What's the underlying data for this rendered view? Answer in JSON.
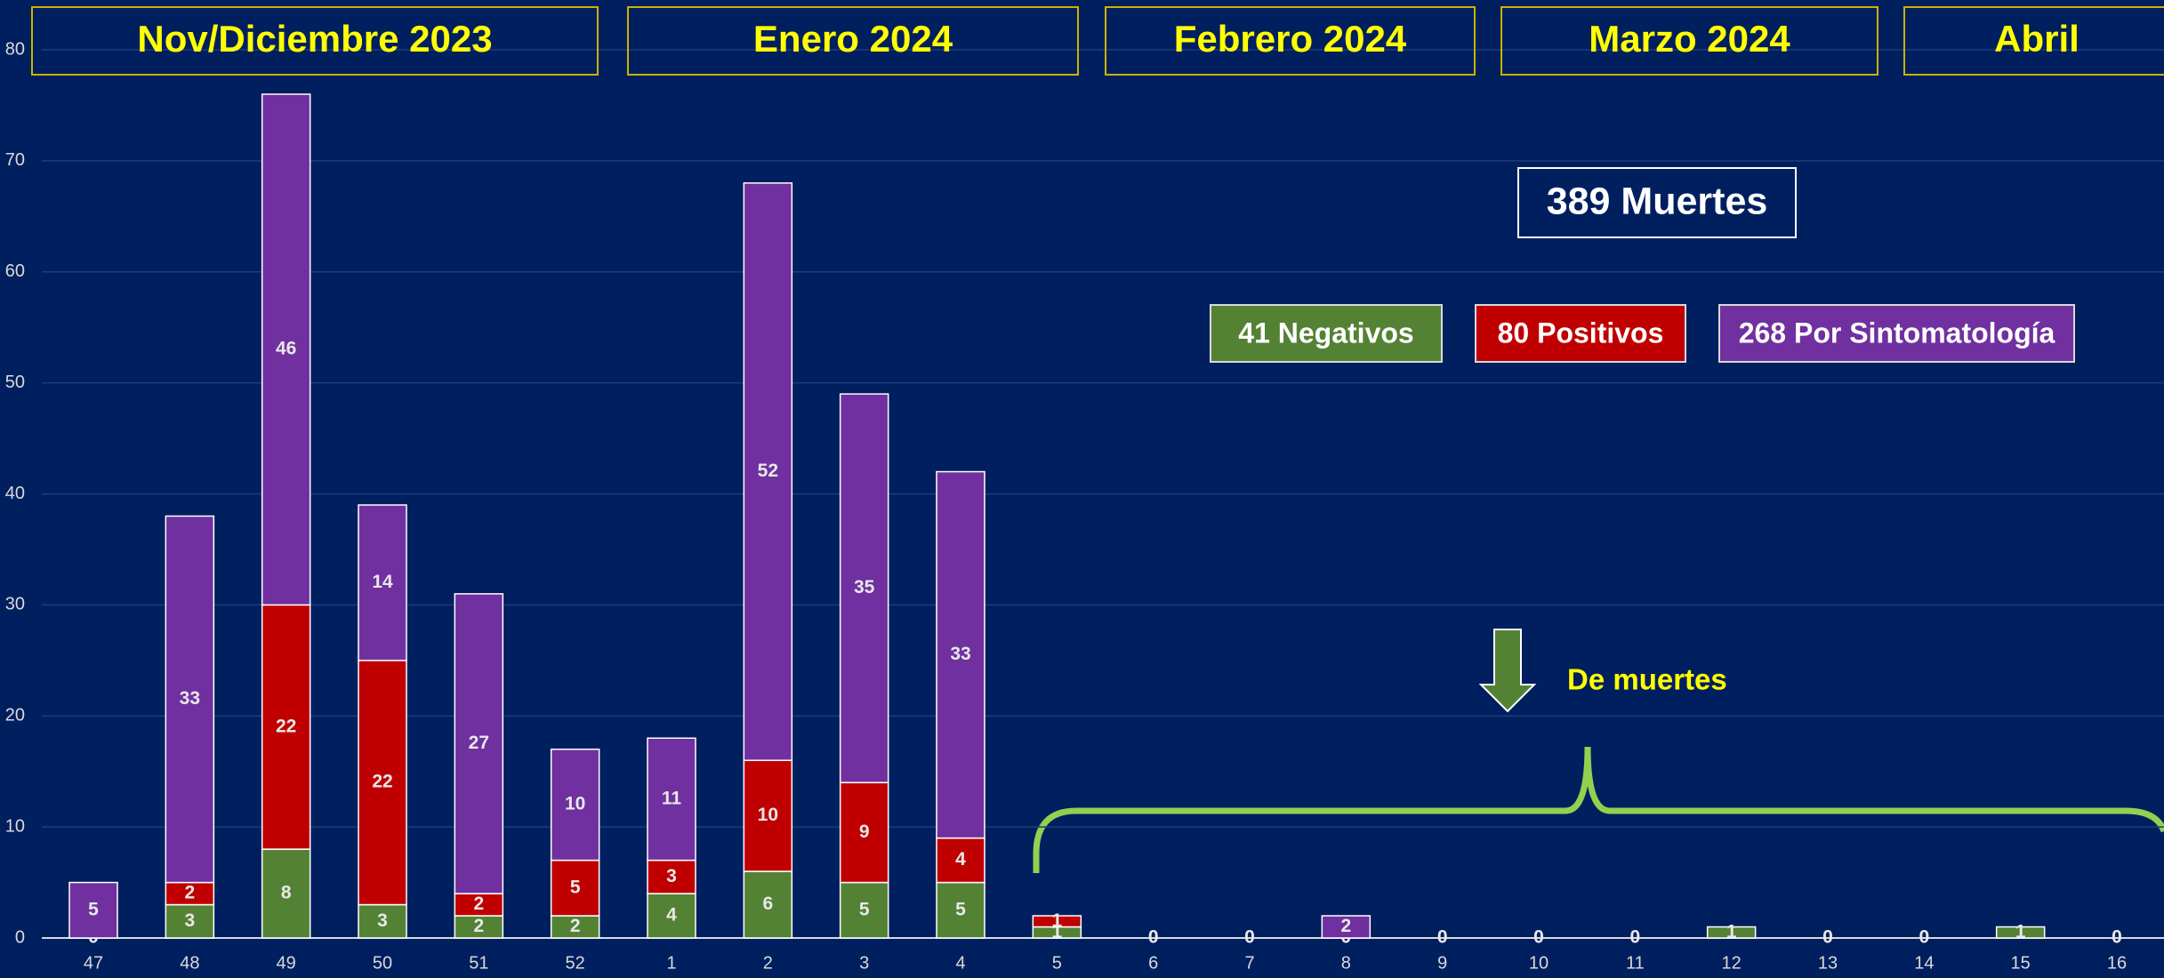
{
  "chart_data": {
    "type": "stacked_bar",
    "period_labels": [
      "Nov/Diciembre 2023",
      "Enero 2024",
      "Febrero 2024",
      "Marzo 2024",
      "Abril"
    ],
    "total_label": "389 Muertes",
    "annotation": "De muertes",
    "categories": [
      "47",
      "48",
      "49",
      "50",
      "51",
      "52",
      "1",
      "2",
      "3",
      "4",
      "5",
      "6",
      "7",
      "8",
      "9",
      "10",
      "11",
      "12",
      "13",
      "14",
      "15",
      "16"
    ],
    "series": [
      {
        "name": "41 Negativos",
        "color": "#548235",
        "values": [
          0,
          3,
          8,
          3,
          2,
          2,
          4,
          6,
          5,
          5,
          1,
          0,
          0,
          0,
          0,
          0,
          0,
          1,
          0,
          0,
          1,
          0
        ]
      },
      {
        "name": "80 Positivos",
        "color": "#c00000",
        "values": [
          0,
          2,
          22,
          22,
          2,
          5,
          3,
          10,
          9,
          4,
          1,
          0,
          0,
          0,
          0,
          0,
          0,
          0,
          0,
          0,
          0,
          0
        ]
      },
      {
        "name": "268 Por Sintomatología",
        "color": "#7030a0",
        "values": [
          5,
          33,
          46,
          14,
          27,
          10,
          11,
          52,
          35,
          33,
          0,
          0,
          0,
          2,
          0,
          0,
          0,
          0,
          0,
          0,
          0,
          0
        ]
      }
    ],
    "ylim": [
      0,
      80
    ],
    "yticks": [
      0,
      10,
      20,
      30,
      40,
      50,
      60,
      70,
      80
    ],
    "grid": true
  }
}
